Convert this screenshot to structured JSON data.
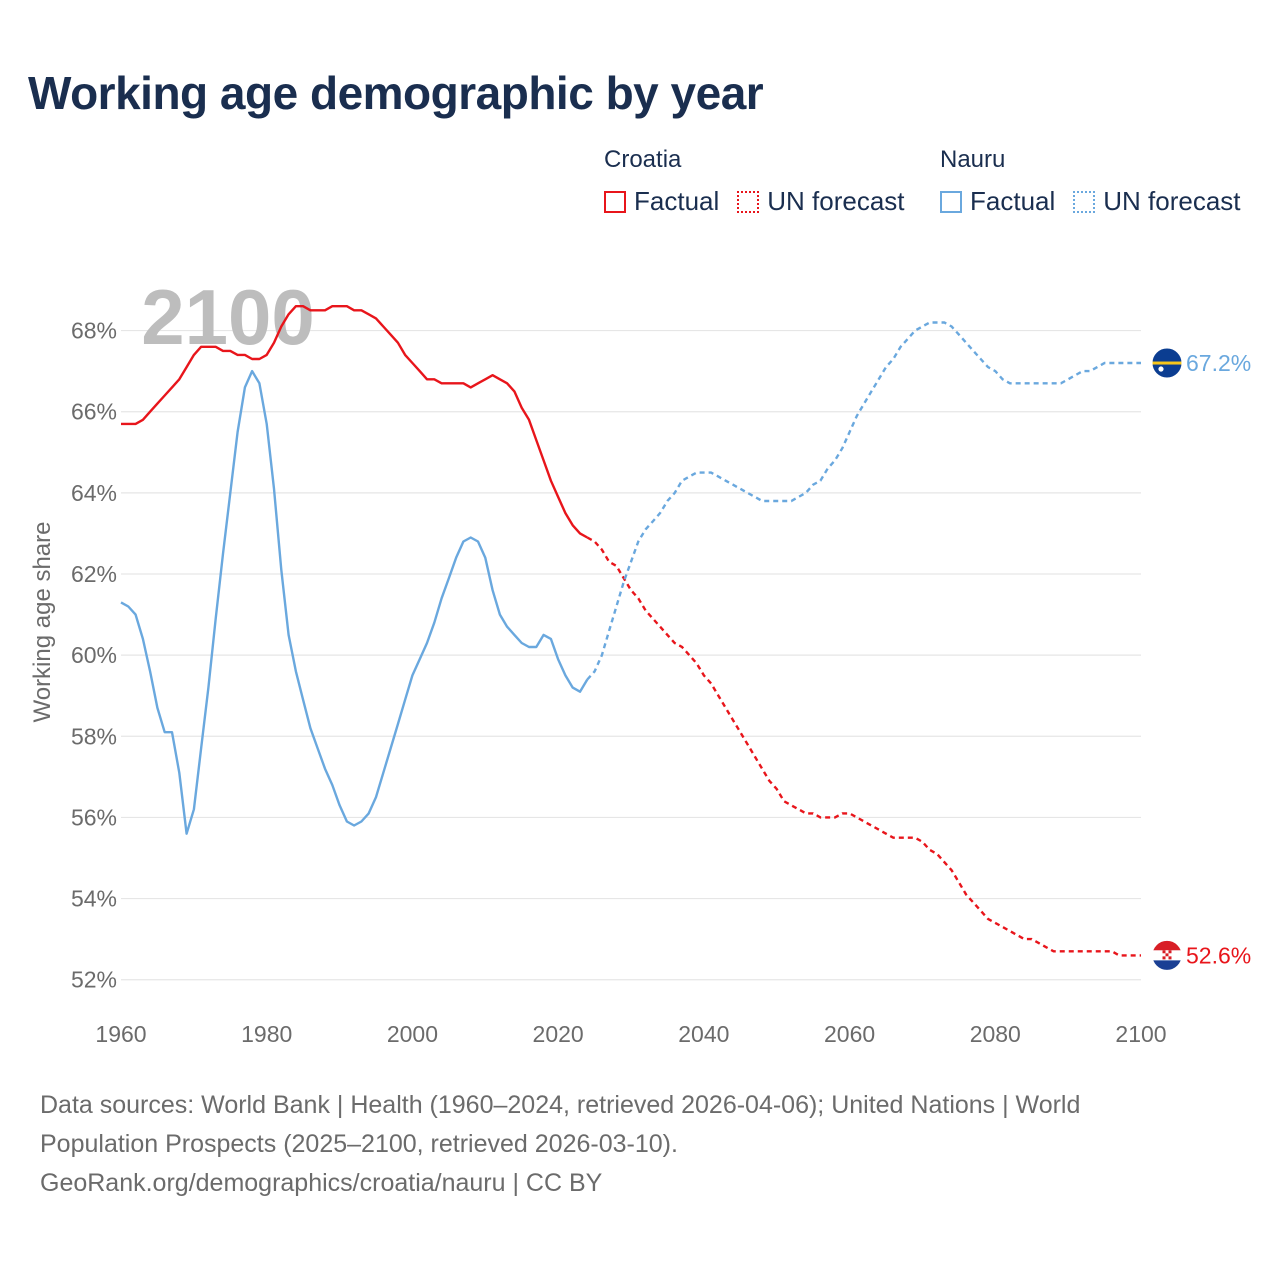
{
  "title": "Working age demographic by year",
  "legend": {
    "groups": [
      {
        "name": "Croatia",
        "color": "#e8151b",
        "factual_label": "Factual",
        "forecast_label": "UN forecast"
      },
      {
        "name": "Nauru",
        "color": "#6aa8de",
        "factual_label": "Factual",
        "forecast_label": "UN forecast"
      }
    ]
  },
  "sources": {
    "line1": "Data sources: World Bank | Health (1960–2024, retrieved 2026-04-06); United Nations | World",
    "line2": "Population Prospects (2025–2100, retrieved 2026-03-10).",
    "line3": "GeoRank.org/demographics/croatia/nauru | CC BY"
  },
  "chart_data": {
    "type": "line",
    "title": "Working age demographic by year",
    "year_watermark": "2100",
    "ylabel": "Working age share",
    "xlabel": "",
    "xlim": [
      1960,
      2100
    ],
    "ylim": [
      51.5,
      69
    ],
    "x_ticks": [
      1960,
      1980,
      2000,
      2020,
      2040,
      2060,
      2080,
      2100
    ],
    "y_ticks": [
      52,
      54,
      56,
      58,
      60,
      62,
      64,
      66,
      68
    ],
    "y_tick_labels": [
      "52%",
      "54%",
      "56%",
      "58%",
      "60%",
      "62%",
      "64%",
      "66%",
      "68%"
    ],
    "grid": true,
    "series": [
      {
        "name": "Croatia",
        "color": "#e8151b",
        "end_label": "52.6%",
        "flag": "croatia",
        "factual": [
          [
            1960,
            65.7
          ],
          [
            1961,
            65.7
          ],
          [
            1962,
            65.7
          ],
          [
            1963,
            65.8
          ],
          [
            1964,
            66.0
          ],
          [
            1965,
            66.2
          ],
          [
            1966,
            66.4
          ],
          [
            1967,
            66.6
          ],
          [
            1968,
            66.8
          ],
          [
            1969,
            67.1
          ],
          [
            1970,
            67.4
          ],
          [
            1971,
            67.6
          ],
          [
            1972,
            67.6
          ],
          [
            1973,
            67.6
          ],
          [
            1974,
            67.5
          ],
          [
            1975,
            67.5
          ],
          [
            1976,
            67.4
          ],
          [
            1977,
            67.4
          ],
          [
            1978,
            67.3
          ],
          [
            1979,
            67.3
          ],
          [
            1980,
            67.4
          ],
          [
            1981,
            67.7
          ],
          [
            1982,
            68.1
          ],
          [
            1983,
            68.4
          ],
          [
            1984,
            68.6
          ],
          [
            1985,
            68.6
          ],
          [
            1986,
            68.5
          ],
          [
            1987,
            68.5
          ],
          [
            1988,
            68.5
          ],
          [
            1989,
            68.6
          ],
          [
            1990,
            68.6
          ],
          [
            1991,
            68.6
          ],
          [
            1992,
            68.5
          ],
          [
            1993,
            68.5
          ],
          [
            1994,
            68.4
          ],
          [
            1995,
            68.3
          ],
          [
            1996,
            68.1
          ],
          [
            1997,
            67.9
          ],
          [
            1998,
            67.7
          ],
          [
            1999,
            67.4
          ],
          [
            2000,
            67.2
          ],
          [
            2001,
            67.0
          ],
          [
            2002,
            66.8
          ],
          [
            2003,
            66.8
          ],
          [
            2004,
            66.7
          ],
          [
            2005,
            66.7
          ],
          [
            2006,
            66.7
          ],
          [
            2007,
            66.7
          ],
          [
            2008,
            66.6
          ],
          [
            2009,
            66.7
          ],
          [
            2010,
            66.8
          ],
          [
            2011,
            66.9
          ],
          [
            2012,
            66.8
          ],
          [
            2013,
            66.7
          ],
          [
            2014,
            66.5
          ],
          [
            2015,
            66.1
          ],
          [
            2016,
            65.8
          ],
          [
            2017,
            65.3
          ],
          [
            2018,
            64.8
          ],
          [
            2019,
            64.3
          ],
          [
            2020,
            63.9
          ],
          [
            2021,
            63.5
          ],
          [
            2022,
            63.2
          ],
          [
            2023,
            63.0
          ],
          [
            2024,
            62.9
          ]
        ],
        "forecast": [
          [
            2024,
            62.9
          ],
          [
            2025,
            62.8
          ],
          [
            2026,
            62.6
          ],
          [
            2027,
            62.3
          ],
          [
            2028,
            62.2
          ],
          [
            2029,
            61.9
          ],
          [
            2030,
            61.6
          ],
          [
            2031,
            61.4
          ],
          [
            2032,
            61.1
          ],
          [
            2033,
            60.9
          ],
          [
            2034,
            60.7
          ],
          [
            2035,
            60.5
          ],
          [
            2036,
            60.3
          ],
          [
            2037,
            60.2
          ],
          [
            2038,
            60.0
          ],
          [
            2039,
            59.8
          ],
          [
            2040,
            59.5
          ],
          [
            2041,
            59.3
          ],
          [
            2042,
            59.0
          ],
          [
            2043,
            58.7
          ],
          [
            2044,
            58.4
          ],
          [
            2045,
            58.1
          ],
          [
            2046,
            57.8
          ],
          [
            2047,
            57.5
          ],
          [
            2048,
            57.2
          ],
          [
            2049,
            56.9
          ],
          [
            2050,
            56.7
          ],
          [
            2051,
            56.4
          ],
          [
            2052,
            56.3
          ],
          [
            2053,
            56.2
          ],
          [
            2054,
            56.1
          ],
          [
            2055,
            56.1
          ],
          [
            2056,
            56.0
          ],
          [
            2057,
            56.0
          ],
          [
            2058,
            56.0
          ],
          [
            2059,
            56.1
          ],
          [
            2060,
            56.1
          ],
          [
            2061,
            56.0
          ],
          [
            2062,
            55.9
          ],
          [
            2063,
            55.8
          ],
          [
            2064,
            55.7
          ],
          [
            2065,
            55.6
          ],
          [
            2066,
            55.5
          ],
          [
            2067,
            55.5
          ],
          [
            2068,
            55.5
          ],
          [
            2069,
            55.5
          ],
          [
            2070,
            55.4
          ],
          [
            2071,
            55.2
          ],
          [
            2072,
            55.1
          ],
          [
            2073,
            54.9
          ],
          [
            2074,
            54.7
          ],
          [
            2075,
            54.4
          ],
          [
            2076,
            54.1
          ],
          [
            2077,
            53.9
          ],
          [
            2078,
            53.7
          ],
          [
            2079,
            53.5
          ],
          [
            2080,
            53.4
          ],
          [
            2081,
            53.3
          ],
          [
            2082,
            53.2
          ],
          [
            2083,
            53.1
          ],
          [
            2084,
            53.0
          ],
          [
            2085,
            53.0
          ],
          [
            2086,
            52.9
          ],
          [
            2087,
            52.8
          ],
          [
            2088,
            52.7
          ],
          [
            2089,
            52.7
          ],
          [
            2090,
            52.7
          ],
          [
            2091,
            52.7
          ],
          [
            2092,
            52.7
          ],
          [
            2093,
            52.7
          ],
          [
            2094,
            52.7
          ],
          [
            2095,
            52.7
          ],
          [
            2096,
            52.7
          ],
          [
            2097,
            52.6
          ],
          [
            2098,
            52.6
          ],
          [
            2099,
            52.6
          ],
          [
            2100,
            52.6
          ]
        ]
      },
      {
        "name": "Nauru",
        "color": "#6aa8de",
        "end_label": "67.2%",
        "flag": "nauru",
        "factual": [
          [
            1960,
            61.3
          ],
          [
            1961,
            61.2
          ],
          [
            1962,
            61.0
          ],
          [
            1963,
            60.4
          ],
          [
            1964,
            59.6
          ],
          [
            1965,
            58.7
          ],
          [
            1966,
            58.1
          ],
          [
            1967,
            58.1
          ],
          [
            1968,
            57.1
          ],
          [
            1969,
            55.6
          ],
          [
            1970,
            56.2
          ],
          [
            1971,
            57.7
          ],
          [
            1972,
            59.2
          ],
          [
            1973,
            60.9
          ],
          [
            1974,
            62.5
          ],
          [
            1975,
            64.0
          ],
          [
            1976,
            65.5
          ],
          [
            1977,
            66.6
          ],
          [
            1978,
            67.0
          ],
          [
            1979,
            66.7
          ],
          [
            1980,
            65.7
          ],
          [
            1981,
            64.1
          ],
          [
            1982,
            62.1
          ],
          [
            1983,
            60.5
          ],
          [
            1984,
            59.6
          ],
          [
            1985,
            58.9
          ],
          [
            1986,
            58.2
          ],
          [
            1987,
            57.7
          ],
          [
            1988,
            57.2
          ],
          [
            1989,
            56.8
          ],
          [
            1990,
            56.3
          ],
          [
            1991,
            55.9
          ],
          [
            1992,
            55.8
          ],
          [
            1993,
            55.9
          ],
          [
            1994,
            56.1
          ],
          [
            1995,
            56.5
          ],
          [
            1996,
            57.1
          ],
          [
            1997,
            57.7
          ],
          [
            1998,
            58.3
          ],
          [
            1999,
            58.9
          ],
          [
            2000,
            59.5
          ],
          [
            2001,
            59.9
          ],
          [
            2002,
            60.3
          ],
          [
            2003,
            60.8
          ],
          [
            2004,
            61.4
          ],
          [
            2005,
            61.9
          ],
          [
            2006,
            62.4
          ],
          [
            2007,
            62.8
          ],
          [
            2008,
            62.9
          ],
          [
            2009,
            62.8
          ],
          [
            2010,
            62.4
          ],
          [
            2011,
            61.6
          ],
          [
            2012,
            61.0
          ],
          [
            2013,
            60.7
          ],
          [
            2014,
            60.5
          ],
          [
            2015,
            60.3
          ],
          [
            2016,
            60.2
          ],
          [
            2017,
            60.2
          ],
          [
            2018,
            60.5
          ],
          [
            2019,
            60.4
          ],
          [
            2020,
            59.9
          ],
          [
            2021,
            59.5
          ],
          [
            2022,
            59.2
          ],
          [
            2023,
            59.1
          ],
          [
            2024,
            59.4
          ]
        ],
        "forecast": [
          [
            2024,
            59.4
          ],
          [
            2025,
            59.6
          ],
          [
            2026,
            60.0
          ],
          [
            2027,
            60.6
          ],
          [
            2028,
            61.2
          ],
          [
            2029,
            61.8
          ],
          [
            2030,
            62.3
          ],
          [
            2031,
            62.8
          ],
          [
            2032,
            63.1
          ],
          [
            2033,
            63.3
          ],
          [
            2034,
            63.5
          ],
          [
            2035,
            63.8
          ],
          [
            2036,
            64.0
          ],
          [
            2037,
            64.3
          ],
          [
            2038,
            64.4
          ],
          [
            2039,
            64.5
          ],
          [
            2040,
            64.5
          ],
          [
            2041,
            64.5
          ],
          [
            2042,
            64.4
          ],
          [
            2043,
            64.3
          ],
          [
            2044,
            64.2
          ],
          [
            2045,
            64.1
          ],
          [
            2046,
            64.0
          ],
          [
            2047,
            63.9
          ],
          [
            2048,
            63.8
          ],
          [
            2049,
            63.8
          ],
          [
            2050,
            63.8
          ],
          [
            2051,
            63.8
          ],
          [
            2052,
            63.8
          ],
          [
            2053,
            63.9
          ],
          [
            2054,
            64.0
          ],
          [
            2055,
            64.2
          ],
          [
            2056,
            64.3
          ],
          [
            2057,
            64.6
          ],
          [
            2058,
            64.8
          ],
          [
            2059,
            65.1
          ],
          [
            2060,
            65.5
          ],
          [
            2061,
            65.9
          ],
          [
            2062,
            66.2
          ],
          [
            2063,
            66.5
          ],
          [
            2064,
            66.8
          ],
          [
            2065,
            67.1
          ],
          [
            2066,
            67.3
          ],
          [
            2067,
            67.6
          ],
          [
            2068,
            67.8
          ],
          [
            2069,
            68.0
          ],
          [
            2070,
            68.1
          ],
          [
            2071,
            68.2
          ],
          [
            2072,
            68.2
          ],
          [
            2073,
            68.2
          ],
          [
            2074,
            68.1
          ],
          [
            2075,
            67.9
          ],
          [
            2076,
            67.7
          ],
          [
            2077,
            67.5
          ],
          [
            2078,
            67.3
          ],
          [
            2079,
            67.1
          ],
          [
            2080,
            67.0
          ],
          [
            2081,
            66.8
          ],
          [
            2082,
            66.7
          ],
          [
            2083,
            66.7
          ],
          [
            2084,
            66.7
          ],
          [
            2085,
            66.7
          ],
          [
            2086,
            66.7
          ],
          [
            2087,
            66.7
          ],
          [
            2088,
            66.7
          ],
          [
            2089,
            66.7
          ],
          [
            2090,
            66.8
          ],
          [
            2091,
            66.9
          ],
          [
            2092,
            67.0
          ],
          [
            2093,
            67.0
          ],
          [
            2094,
            67.1
          ],
          [
            2095,
            67.2
          ],
          [
            2096,
            67.2
          ],
          [
            2097,
            67.2
          ],
          [
            2098,
            67.2
          ],
          [
            2099,
            67.2
          ],
          [
            2100,
            67.2
          ]
        ]
      }
    ]
  }
}
